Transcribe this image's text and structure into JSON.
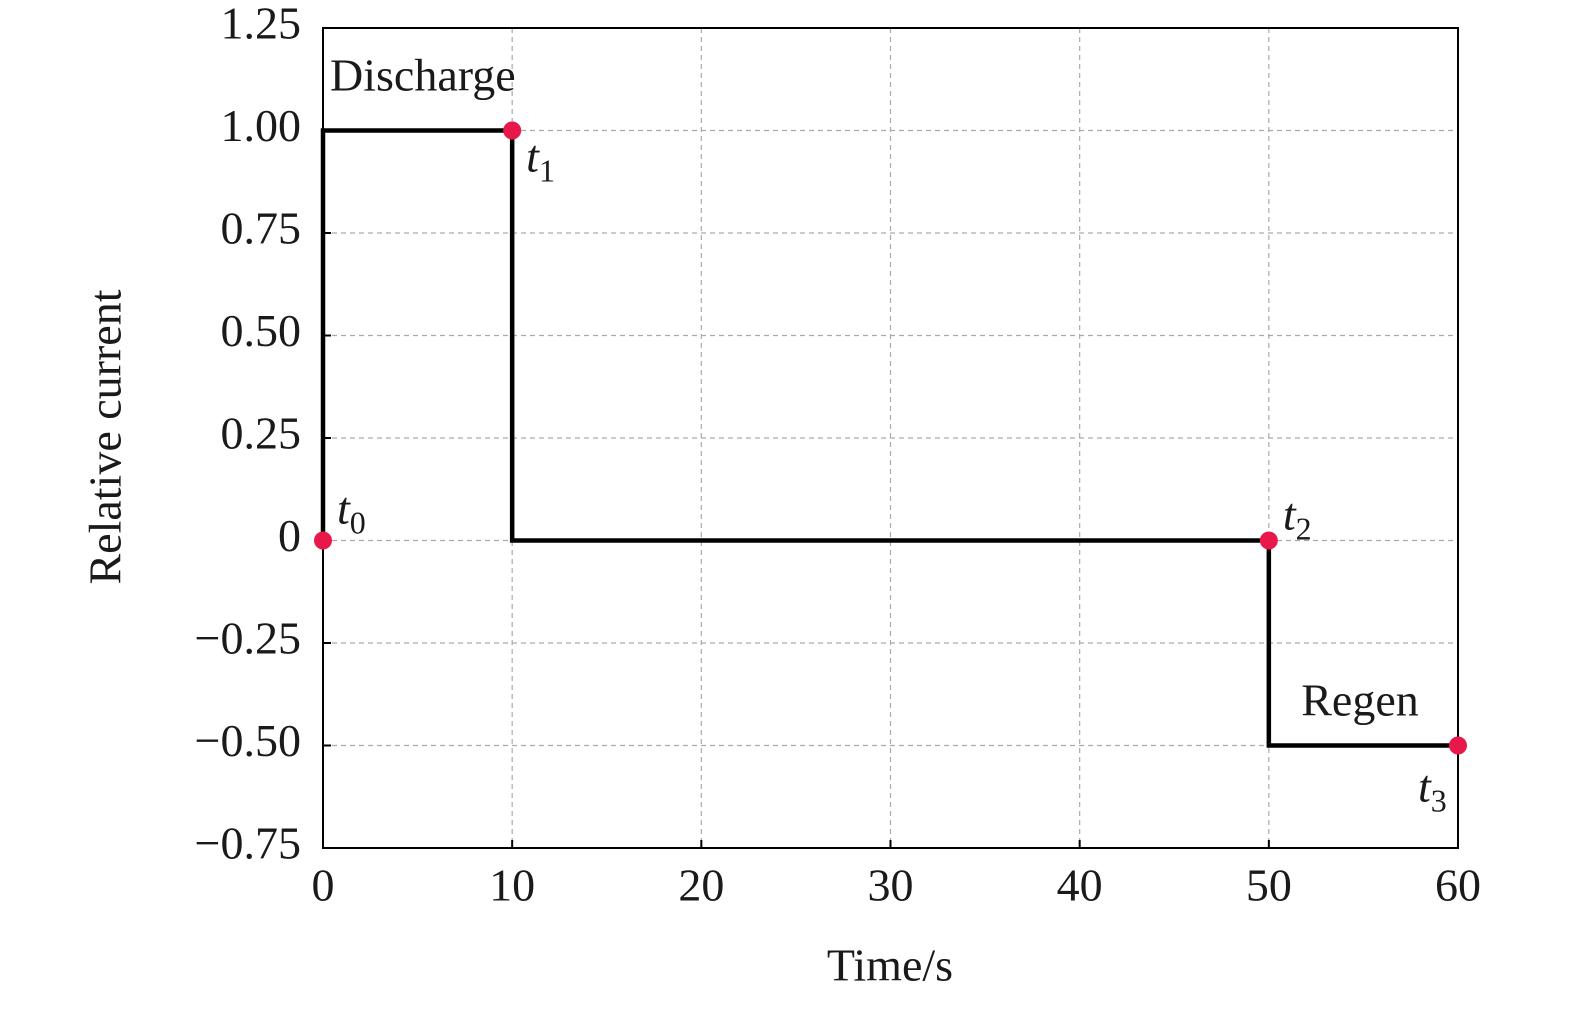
{
  "chart_data": {
    "type": "line",
    "xlabel": "Time/s",
    "ylabel": "Relative current",
    "xlim": [
      0,
      60
    ],
    "ylim": [
      -0.75,
      1.25
    ],
    "xticks": [
      0,
      10,
      20,
      30,
      40,
      50,
      60
    ],
    "yticks": [
      {
        "value": 1.25,
        "label": "1.25"
      },
      {
        "value": 1,
        "label": "1.00"
      },
      0.75,
      {
        "value": 0.5,
        "label": "0.50"
      },
      0.25,
      0,
      {
        "value": -0.25,
        "label": "−0.25"
      },
      {
        "value": -0.5,
        "label": "−0.50"
      },
      {
        "value": -0.75,
        "label": "−0.75"
      }
    ],
    "grid": true,
    "series": [
      {
        "color": "#000000",
        "x": [
          0,
          0,
          10,
          10,
          50,
          50,
          60
        ],
        "values": [
          0,
          1,
          1,
          0,
          0,
          -0.5,
          -0.5
        ]
      },
      {
        "color": "#e8194a",
        "marker": "circle",
        "x": [
          0,
          10,
          50,
          60
        ],
        "values": [
          0,
          1,
          0,
          -0.5
        ],
        "labels": [
          {
            "text": "t",
            "sub": "0"
          },
          {
            "text": "t",
            "sub": "1"
          },
          {
            "text": "t",
            "sub": "2"
          },
          {
            "text": "t",
            "sub": "3"
          }
        ]
      }
    ],
    "annotations": [
      "Discharge",
      "Regen"
    ]
  }
}
